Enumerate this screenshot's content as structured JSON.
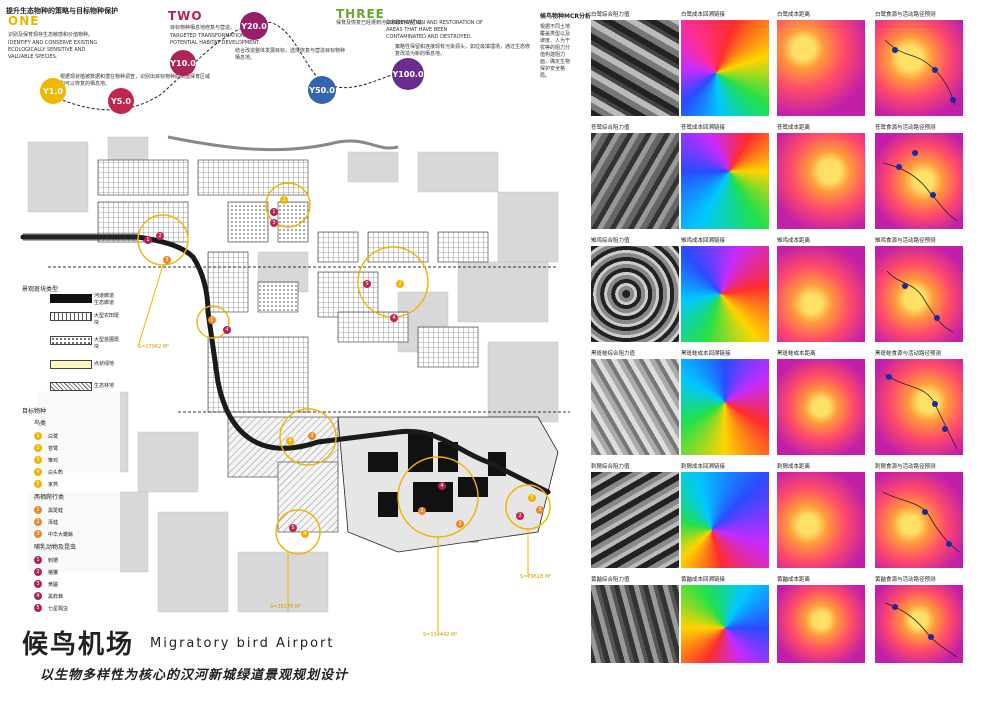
{
  "header": {
    "strategy_title": "提升生态物种的策略与目标物种保护",
    "phases": [
      {
        "label": "ONE",
        "color": "#e6b800",
        "cn": "识别及保育现存生态敏感和价值物种。",
        "en": "IDENTIFY AND CONSERVE EXISTING ECOLOGICALLY SENSITIVE AND VALUABLE SPECIES."
      },
      {
        "label": "TWO",
        "color": "#b0225a",
        "cn": "目标物种栖息地修复与营造。",
        "en": "TARGETED TRANSFORMATION AND POTENTIAL HABITAT DEVELOPMENT."
      },
      {
        "label": "THREE",
        "color": "#6aa52e",
        "cn": "保育及恢复已经遭到污染和破坏的区域。",
        "en": "CONSERVATION AND RESTORATION OF AREAS THAT HAVE BEEN CONTAMINATED AND DESTROYED."
      }
    ],
    "para_one": "根据现状植被数据和潜在物种调查，识别出目标物种的高值保育区域和可以恢复的栖息地。",
    "para_two": "结合改造整体发展目标，选择恢复与营造目标物种栖息地。",
    "para_three": "策略性保留和连接现有污染源头，如垃圾填埋场，通过生态修复改造为新的栖息地。",
    "mcr_title": "候鸟物种MCR分析",
    "mcr_text": "根据不同土地覆盖类型以及坡度、人为干扰等的阻力分值构建阻力面，确定生物保护安全格局。",
    "years": [
      {
        "label": "Y1.0",
        "color": "#f0b800"
      },
      {
        "label": "Y5.0",
        "color": "#c0264f"
      },
      {
        "label": "Y10.0",
        "color": "#b0225a"
      },
      {
        "label": "Y20.0",
        "color": "#9a1d6b"
      },
      {
        "label": "Y50.0",
        "color": "#3565b0"
      },
      {
        "label": "Y100.0",
        "color": "#6a2d8f"
      }
    ]
  },
  "legend": {
    "landscape_title": "景观斑块类型",
    "landscape_types": [
      {
        "label": "河道廊道",
        "sub": "生态廊道"
      },
      {
        "label": "大型农田斑块",
        "sub": ""
      },
      {
        "label": "大型苗圃斑块",
        "sub": ""
      },
      {
        "label": "点状绿地",
        "sub": ""
      },
      {
        "label": "生态林地",
        "sub": ""
      }
    ],
    "species_title": "目标物种",
    "birds_title": "鸟类",
    "birds": [
      {
        "num": "1",
        "label": "白鹭"
      },
      {
        "num": "2",
        "label": "苍鹭"
      },
      {
        "num": "3",
        "label": "雉鸡"
      },
      {
        "num": "4",
        "label": "白头鹎"
      },
      {
        "num": "5",
        "label": "家燕"
      }
    ],
    "amphibians_title": "两栖爬行类",
    "amphibians": [
      {
        "num": "1",
        "label": "黑斑蛙"
      },
      {
        "num": "2",
        "label": "泽蛙"
      },
      {
        "num": "3",
        "label": "中华大蟾蜍"
      }
    ],
    "mammals_title": "哺乳动物及昆虫",
    "mammals": [
      {
        "num": "1",
        "label": "刺猬"
      },
      {
        "num": "2",
        "label": "猪獾"
      },
      {
        "num": "3",
        "label": "黄鼬"
      },
      {
        "num": "4",
        "label": "黑蚱蝉"
      },
      {
        "num": "5",
        "label": "七星瓢虫"
      }
    ]
  },
  "map": {
    "areas": [
      "S=17962 M²",
      "S=79618 M²",
      "S=134442 M²",
      "S=26176 M²"
    ]
  },
  "mcr_rows": [
    {
      "species": "白鹭",
      "labels": [
        "白鹭综合阻力值",
        "白鹭成本回溯链接",
        "白鹭成本距离",
        "白鹭食源与活动路径预测"
      ]
    },
    {
      "species": "苍鹭",
      "labels": [
        "苍鹭综合阻力值",
        "苍鹭成本回溯链接",
        "苍鹭成本距离",
        "苍鹭食源与活动路径预测"
      ]
    },
    {
      "species": "雉鸡",
      "labels": [
        "雉鸡综合阻力值",
        "雉鸡成本回溯链接",
        "雉鸡成本距离",
        "雉鸡食源与活动路径预测"
      ]
    },
    {
      "species": "黑斑蛙",
      "labels": [
        "黑斑蛙综合阻力值",
        "黑斑蛙成本回溯链接",
        "黑斑蛙成本距离",
        "黑斑蛙食源与活动路径预测"
      ]
    },
    {
      "species": "刺猬",
      "labels": [
        "刺猬综合阻力值",
        "刺猬成本回溯链接",
        "刺猬成本距离",
        "刺猬食源与活动路径预测"
      ]
    },
    {
      "species": "黄鼬",
      "labels": [
        "黄鼬综合阻力值",
        "黄鼬成本回溯链接",
        "黄鼬成本距离",
        "黄鼬食源与活动路径预测"
      ]
    }
  ],
  "title": {
    "cn": "候鸟机场",
    "en": "Migratory bird Airport",
    "subtitle": "以生物多样性为核心的汉河新城绿道景观规划设计"
  },
  "colors": {
    "yellow": "#f0b400",
    "magenta": "#b0225a",
    "orange": "#e8892a",
    "navy": "#1a2a5a"
  }
}
